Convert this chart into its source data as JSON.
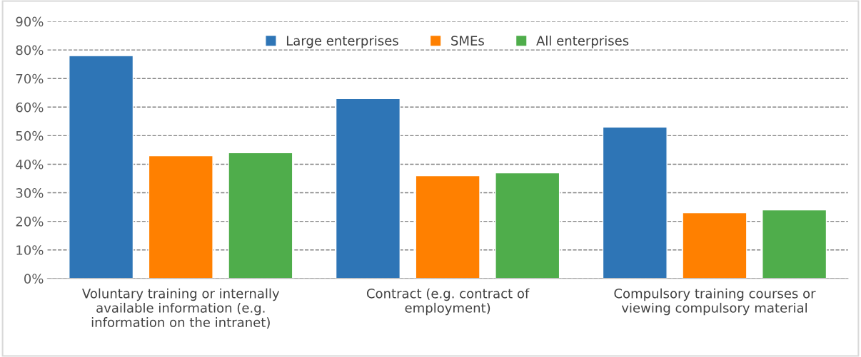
{
  "chart_data": {
    "type": "bar",
    "categories": [
      "Voluntary training or internally available information (e.g. information on the intranet)",
      "Contract (e.g. contract of employment)",
      "Compulsory training courses or viewing compulsory material"
    ],
    "series": [
      {
        "name": "Large enterprises",
        "color": "#2e75b6",
        "values": [
          78,
          63,
          53
        ]
      },
      {
        "name": "SMEs",
        "color": "#ff8000",
        "values": [
          43,
          36,
          23
        ]
      },
      {
        "name": "All enterprises",
        "color": "#4fad4b",
        "values": [
          44,
          37,
          24
        ]
      }
    ],
    "ylim": [
      0,
      90
    ],
    "yticks": [
      {
        "value": 0,
        "label": "0%"
      },
      {
        "value": 10,
        "label": "10%"
      },
      {
        "value": 20,
        "label": "20%"
      },
      {
        "value": 30,
        "label": "30%"
      },
      {
        "value": 40,
        "label": "40%"
      },
      {
        "value": 50,
        "label": "50%"
      },
      {
        "value": 60,
        "label": "60%"
      },
      {
        "value": 70,
        "label": "70%"
      },
      {
        "value": 80,
        "label": "80%"
      },
      {
        "value": 90,
        "label": "90%"
      }
    ],
    "grid": "y",
    "legend": "top",
    "line_style": "dashed"
  }
}
